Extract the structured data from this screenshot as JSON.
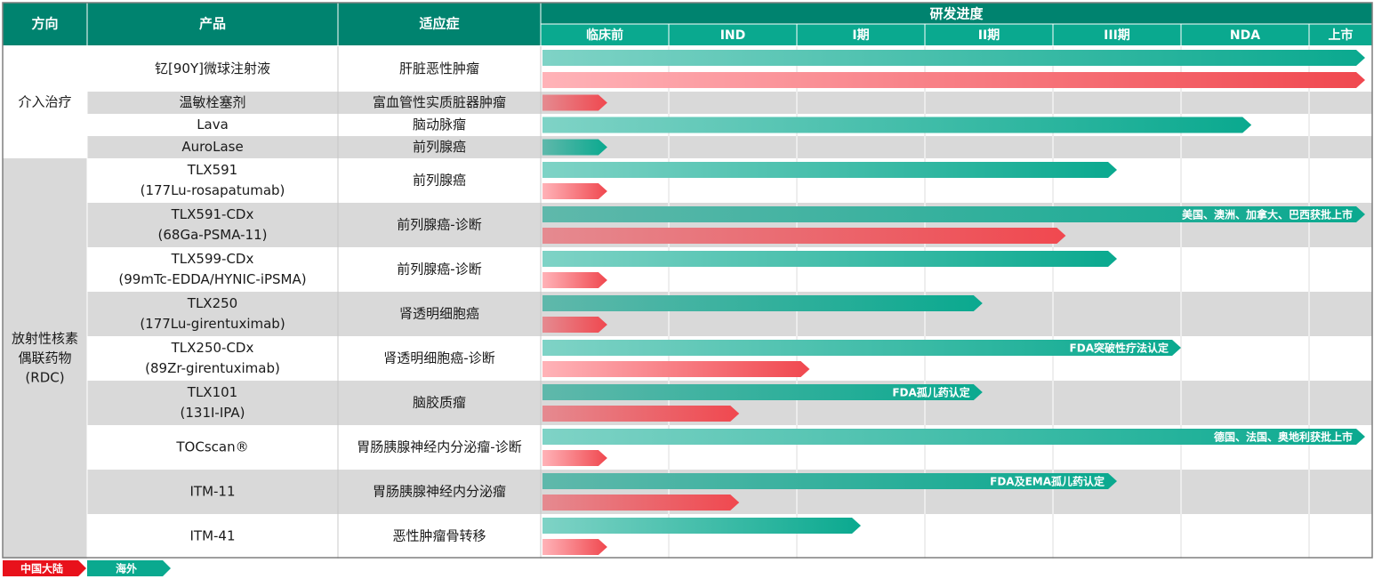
{
  "headers": {
    "direction": "方向",
    "product": "产品",
    "indication": "适应症",
    "progress": "研发进度"
  },
  "chart_data": {
    "type": "bar",
    "stages": [
      "临床前",
      "IND",
      "I期",
      "II期",
      "III期",
      "NDA",
      "上市"
    ],
    "groups": [
      {
        "label": "介入治疗",
        "lines": [
          "介入治疗"
        ]
      },
      {
        "label": "放射性核素偶联药物(RDC)",
        "lines": [
          "放射性核素",
          "偶联药物",
          "(RDC)"
        ]
      }
    ],
    "series": [
      {
        "name": "海外",
        "color": "#0aa98f"
      },
      {
        "name": "中国大陆",
        "color": "#e8111b"
      }
    ],
    "rows": [
      {
        "group": 0,
        "product": [
          "钇[90Y]微球注射液"
        ],
        "indication": "肝脏恶性肿瘤",
        "overseas": 6.45,
        "china": 6.45,
        "overseas_note": "",
        "china_note": ""
      },
      {
        "group": 0,
        "product": [
          "温敏栓塞剂"
        ],
        "indication": "富血管性实质脏器肿瘤",
        "overseas": null,
        "china": 0.52,
        "overseas_note": "",
        "china_note": ""
      },
      {
        "group": 0,
        "product": [
          "Lava"
        ],
        "indication": "脑动脉瘤",
        "overseas": 5.55,
        "china": null,
        "overseas_note": "",
        "china_note": ""
      },
      {
        "group": 0,
        "product": [
          "AuroLase"
        ],
        "indication": "前列腺癌",
        "overseas": 0.52,
        "china": null,
        "overseas_note": "",
        "china_note": ""
      },
      {
        "group": 1,
        "product": [
          "TLX591",
          "(177Lu-rosapatumab)"
        ],
        "indication": "前列腺癌",
        "overseas": 4.5,
        "china": 0.52,
        "overseas_note": "",
        "china_note": ""
      },
      {
        "group": 1,
        "product": [
          "TLX591-CDx",
          "(68Ga-PSMA-11)"
        ],
        "indication": "前列腺癌-诊断",
        "overseas": 6.45,
        "china": 4.1,
        "overseas_note": "美国、澳洲、加拿大、巴西获批上市",
        "china_note": ""
      },
      {
        "group": 1,
        "product": [
          "TLX599-CDx",
          "(99mTc-EDDA/HYNIC-iPSMA)"
        ],
        "indication": "前列腺癌-诊断",
        "overseas": 4.5,
        "china": 0.52,
        "overseas_note": "",
        "china_note": ""
      },
      {
        "group": 1,
        "product": [
          "TLX250",
          "(177Lu-girentuximab)"
        ],
        "indication": "肾透明细胞癌",
        "overseas": 3.45,
        "china": 0.52,
        "overseas_note": "",
        "china_note": ""
      },
      {
        "group": 1,
        "product": [
          "TLX250-CDx",
          "(89Zr-girentuximab)"
        ],
        "indication": "肾透明细胞癌-诊断",
        "overseas": 5.0,
        "china": 2.1,
        "overseas_note": "FDA突破性疗法认定",
        "china_note": ""
      },
      {
        "group": 1,
        "product": [
          "TLX101",
          "(131I-IPA)"
        ],
        "indication": "脑胶质瘤",
        "overseas": 3.45,
        "china": 1.55,
        "overseas_note": "FDA孤儿药认定",
        "china_note": ""
      },
      {
        "group": 1,
        "product": [
          "TOCscan®"
        ],
        "indication": "胃肠胰腺神经内分泌瘤-诊断",
        "overseas": 6.45,
        "china": 0.52,
        "overseas_note": "德国、法国、奥地利获批上市",
        "china_note": ""
      },
      {
        "group": 1,
        "product": [
          "ITM-11"
        ],
        "indication": "胃肠胰腺神经内分泌瘤",
        "overseas": 4.5,
        "china": 1.55,
        "overseas_note": "FDA及EMA孤儿药认定",
        "china_note": ""
      },
      {
        "group": 1,
        "product": [
          "ITM-41"
        ],
        "indication": "恶性肿瘤骨转移",
        "overseas": 2.5,
        "china": 0.52,
        "overseas_note": "",
        "china_note": ""
      }
    ]
  },
  "legend": {
    "china": "中国大陆",
    "overseas": "海外"
  },
  "colors": {
    "header_bg": "#00836f",
    "header_sub_bg": "#0aa98f",
    "row_gray": "#d9d9d9",
    "overseas_start": "#7fd3c6",
    "overseas_end": "#0aa98f",
    "china_start": "#ffb3b8",
    "china_end": "#f0484f",
    "legend_china": "#e8111b",
    "legend_overseas": "#0aa98f"
  }
}
